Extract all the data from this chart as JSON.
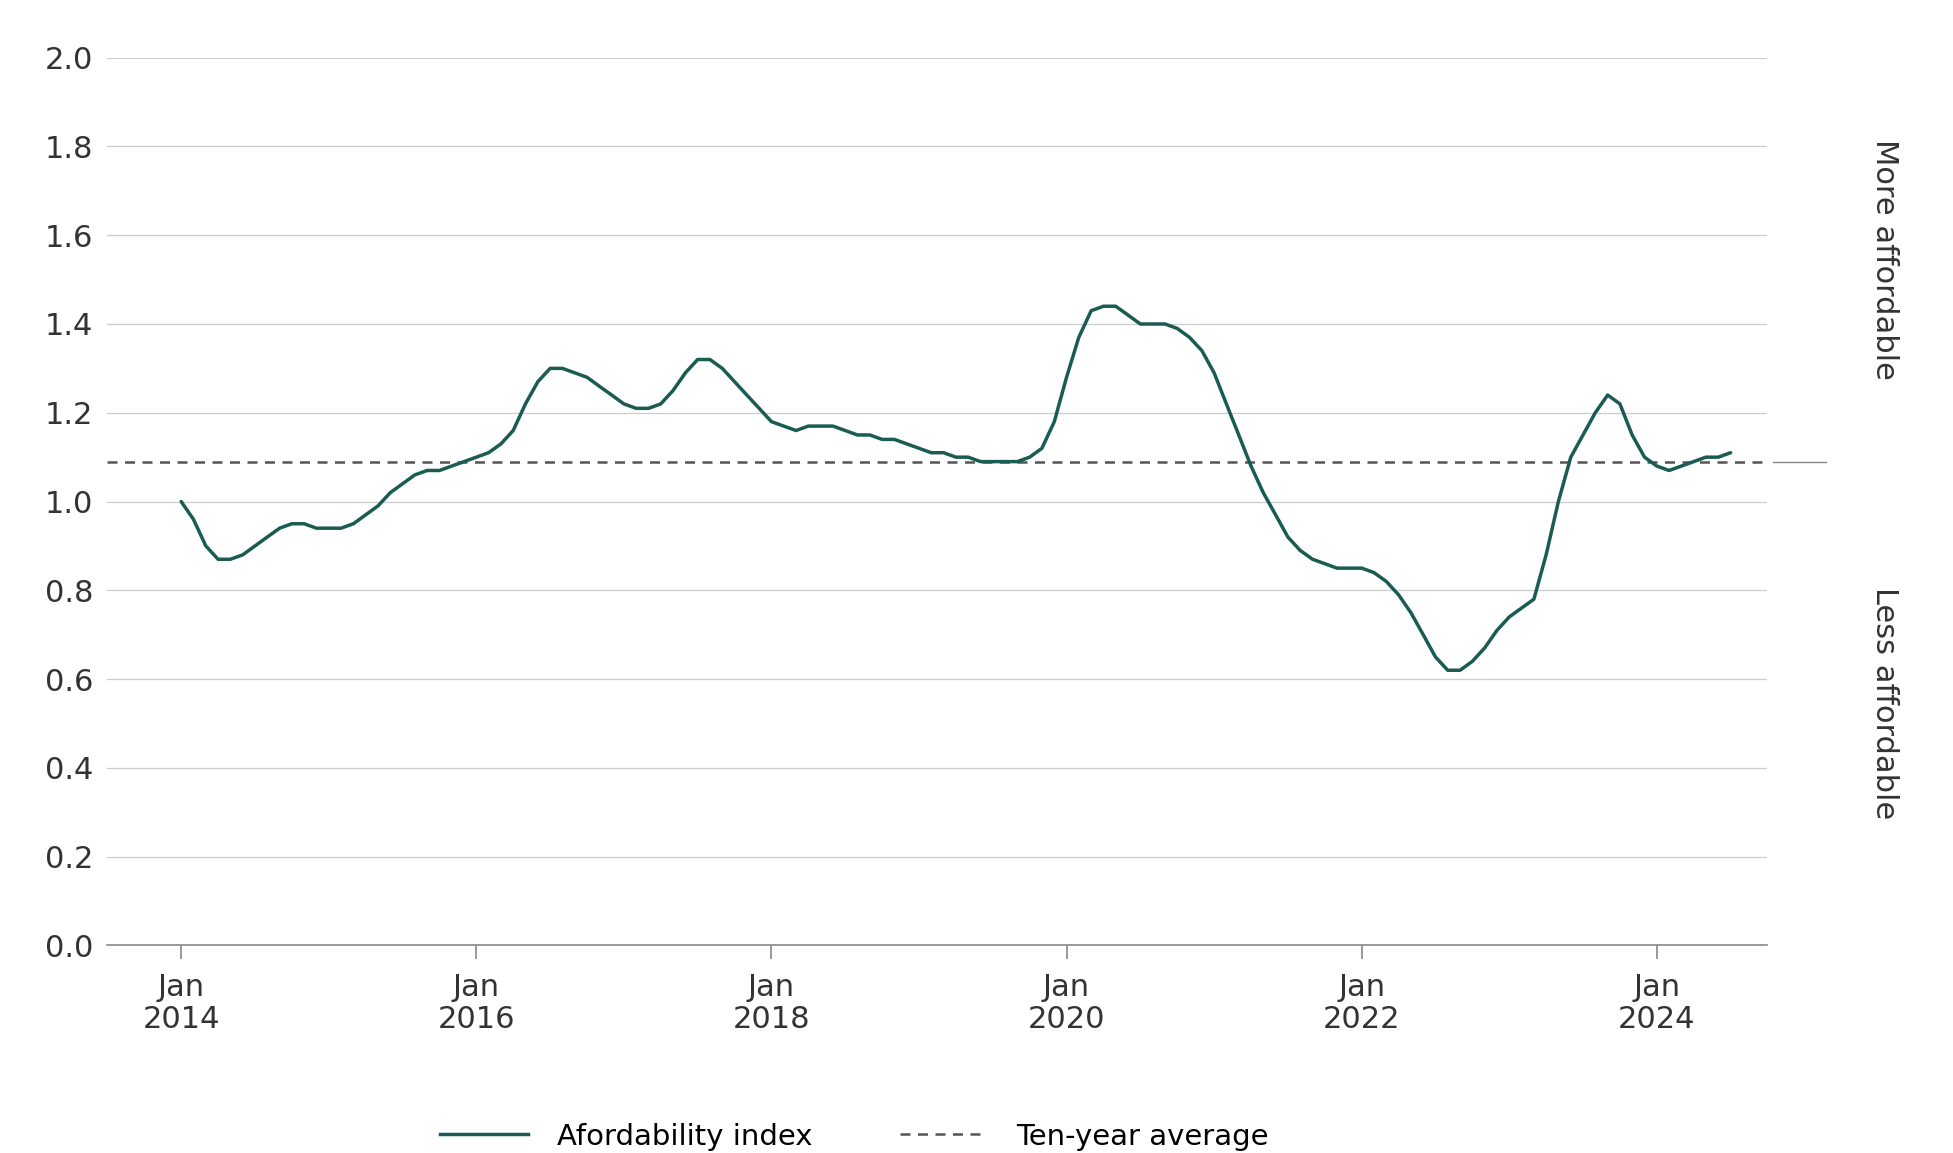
{
  "line_color": "#1a5c52",
  "avg_color": "#555555",
  "avg_value": 1.09,
  "background_color": "#ffffff",
  "grid_color": "#cccccc",
  "right_label_top": "More affordable",
  "right_label_bottom": "Less affordable",
  "legend_line_label": "Afordability index",
  "legend_avg_label": "Ten-year average",
  "ylim": [
    0.0,
    2.0
  ],
  "yticks": [
    0.0,
    0.2,
    0.4,
    0.6,
    0.8,
    1.0,
    1.2,
    1.4,
    1.6,
    1.8,
    2.0
  ],
  "xtick_labels": [
    "Jan\n2014",
    "Jan\n2016",
    "Jan\n2018",
    "Jan\n2020",
    "Jan\n2022",
    "Jan\n2024"
  ],
  "xtick_positions": [
    2014.0,
    2016.0,
    2018.0,
    2020.0,
    2022.0,
    2024.0
  ],
  "xlim_left": 2013.5,
  "xlim_right": 2024.75,
  "label_color": "#333333",
  "tick_color": "#333333",
  "spine_color": "#888888",
  "data": {
    "dates": [
      2014.0,
      2014.083,
      2014.167,
      2014.25,
      2014.333,
      2014.417,
      2014.5,
      2014.583,
      2014.667,
      2014.75,
      2014.833,
      2014.917,
      2015.0,
      2015.083,
      2015.167,
      2015.25,
      2015.333,
      2015.417,
      2015.5,
      2015.583,
      2015.667,
      2015.75,
      2015.833,
      2015.917,
      2016.0,
      2016.083,
      2016.167,
      2016.25,
      2016.333,
      2016.417,
      2016.5,
      2016.583,
      2016.667,
      2016.75,
      2016.833,
      2016.917,
      2017.0,
      2017.083,
      2017.167,
      2017.25,
      2017.333,
      2017.417,
      2017.5,
      2017.583,
      2017.667,
      2017.75,
      2017.833,
      2017.917,
      2018.0,
      2018.083,
      2018.167,
      2018.25,
      2018.333,
      2018.417,
      2018.5,
      2018.583,
      2018.667,
      2018.75,
      2018.833,
      2018.917,
      2019.0,
      2019.083,
      2019.167,
      2019.25,
      2019.333,
      2019.417,
      2019.5,
      2019.583,
      2019.667,
      2019.75,
      2019.833,
      2019.917,
      2020.0,
      2020.083,
      2020.167,
      2020.25,
      2020.333,
      2020.417,
      2020.5,
      2020.583,
      2020.667,
      2020.75,
      2020.833,
      2020.917,
      2021.0,
      2021.083,
      2021.167,
      2021.25,
      2021.333,
      2021.417,
      2021.5,
      2021.583,
      2021.667,
      2021.75,
      2021.833,
      2021.917,
      2022.0,
      2022.083,
      2022.167,
      2022.25,
      2022.333,
      2022.417,
      2022.5,
      2022.583,
      2022.667,
      2022.75,
      2022.833,
      2022.917,
      2023.0,
      2023.083,
      2023.167,
      2023.25,
      2023.333,
      2023.417,
      2023.5,
      2023.583,
      2023.667,
      2023.75,
      2023.833,
      2023.917,
      2024.0,
      2024.083,
      2024.167,
      2024.25,
      2024.333,
      2024.417,
      2024.5
    ],
    "values": [
      1.0,
      0.96,
      0.9,
      0.87,
      0.87,
      0.88,
      0.9,
      0.92,
      0.94,
      0.95,
      0.95,
      0.94,
      0.94,
      0.94,
      0.95,
      0.97,
      0.99,
      1.02,
      1.04,
      1.06,
      1.07,
      1.07,
      1.08,
      1.09,
      1.1,
      1.11,
      1.13,
      1.16,
      1.22,
      1.27,
      1.3,
      1.3,
      1.29,
      1.28,
      1.26,
      1.24,
      1.22,
      1.21,
      1.21,
      1.22,
      1.25,
      1.29,
      1.32,
      1.32,
      1.3,
      1.27,
      1.24,
      1.21,
      1.18,
      1.17,
      1.16,
      1.17,
      1.17,
      1.17,
      1.16,
      1.15,
      1.15,
      1.14,
      1.14,
      1.13,
      1.12,
      1.11,
      1.11,
      1.1,
      1.1,
      1.09,
      1.09,
      1.09,
      1.09,
      1.1,
      1.12,
      1.18,
      1.28,
      1.37,
      1.43,
      1.44,
      1.44,
      1.42,
      1.4,
      1.4,
      1.4,
      1.39,
      1.37,
      1.34,
      1.29,
      1.22,
      1.15,
      1.08,
      1.02,
      0.97,
      0.92,
      0.89,
      0.87,
      0.86,
      0.85,
      0.85,
      0.85,
      0.84,
      0.82,
      0.79,
      0.75,
      0.7,
      0.65,
      0.62,
      0.62,
      0.64,
      0.67,
      0.71,
      0.74,
      0.76,
      0.78,
      0.88,
      1.0,
      1.1,
      1.15,
      1.2,
      1.24,
      1.22,
      1.15,
      1.1,
      1.08,
      1.07,
      1.08,
      1.09,
      1.1,
      1.1,
      1.11
    ]
  }
}
